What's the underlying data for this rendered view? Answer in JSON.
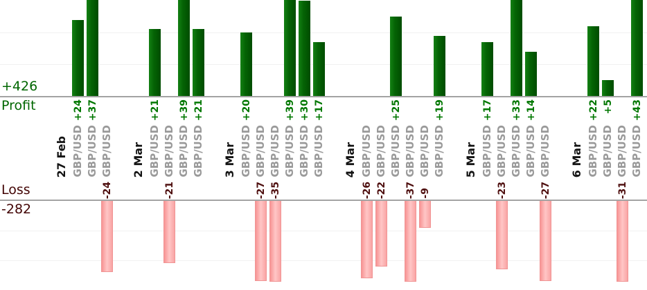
{
  "chart_data": {
    "type": "bar",
    "description": "Per-trade profit and loss bars grouped by trading date",
    "profit_axis": {
      "total_label": "+426",
      "section_label": "Profit",
      "total": 426,
      "text_color": "#006600",
      "bar_color": "#006400",
      "gridline_interval": 10,
      "visible_value_max": 30
    },
    "loss_axis": {
      "total_label": "-282",
      "section_label": "Loss",
      "total": -282,
      "text_color": "#420404",
      "bar_color": "#ffb0b0",
      "gridline_interval": 10,
      "visible_value_max": 27
    },
    "groups": [
      {
        "date": "27 Feb",
        "trades": [
          {
            "instrument": "GBP/USD",
            "value": 24,
            "label": "+24"
          },
          {
            "instrument": "GBP/USD",
            "value": 37,
            "label": "+37"
          },
          {
            "instrument": "GBP/USD",
            "value": -24,
            "label": "-24"
          }
        ]
      },
      {
        "date": "2 Mar",
        "trades": [
          {
            "instrument": "GBP/USD",
            "value": 21,
            "label": "+21"
          },
          {
            "instrument": "GBP/USD",
            "value": -21,
            "label": "-21"
          },
          {
            "instrument": "GBP/USD",
            "value": 39,
            "label": "+39"
          },
          {
            "instrument": "GBP/USD",
            "value": 21,
            "label": "+21"
          }
        ]
      },
      {
        "date": "3 Mar",
        "trades": [
          {
            "instrument": "GBP/USD",
            "value": 20,
            "label": "+20"
          },
          {
            "instrument": "GBP/USD",
            "value": -27,
            "label": "-27"
          },
          {
            "instrument": "GBP/USD",
            "value": -35,
            "label": "-35"
          },
          {
            "instrument": "GBP/USD",
            "value": 39,
            "label": "+39"
          },
          {
            "instrument": "GBP/USD",
            "value": 30,
            "label": "+30"
          },
          {
            "instrument": "GBP/USD",
            "value": 17,
            "label": "+17"
          }
        ]
      },
      {
        "date": "4 Mar",
        "trades": [
          {
            "instrument": "GBP/USD",
            "value": -26,
            "label": "-26"
          },
          {
            "instrument": "GBP/USD",
            "value": -22,
            "label": "-22"
          },
          {
            "instrument": "GBP/USD",
            "value": 25,
            "label": "+25"
          },
          {
            "instrument": "GBP/USD",
            "value": -37,
            "label": "-37"
          },
          {
            "instrument": "GBP/USD",
            "value": -9,
            "label": "-9"
          },
          {
            "instrument": "GBP/USD",
            "value": 19,
            "label": "+19"
          }
        ]
      },
      {
        "date": "5 Mar",
        "trades": [
          {
            "instrument": "GBP/USD",
            "value": 17,
            "label": "+17"
          },
          {
            "instrument": "GBP/USD",
            "value": -23,
            "label": "-23"
          },
          {
            "instrument": "GBP/USD",
            "value": 33,
            "label": "+33"
          },
          {
            "instrument": "GBP/USD",
            "value": 14,
            "label": "+14"
          },
          {
            "instrument": "GBP/USD",
            "value": -27,
            "label": "-27"
          }
        ]
      },
      {
        "date": "6 Mar",
        "trades": [
          {
            "instrument": "GBP/USD",
            "value": 22,
            "label": "+22"
          },
          {
            "instrument": "GBP/USD",
            "value": 5,
            "label": "+5"
          },
          {
            "instrument": "GBP/USD",
            "value": -31,
            "label": "-31"
          },
          {
            "instrument": "GBP/USD",
            "value": 43,
            "label": "+43"
          }
        ]
      }
    ]
  }
}
